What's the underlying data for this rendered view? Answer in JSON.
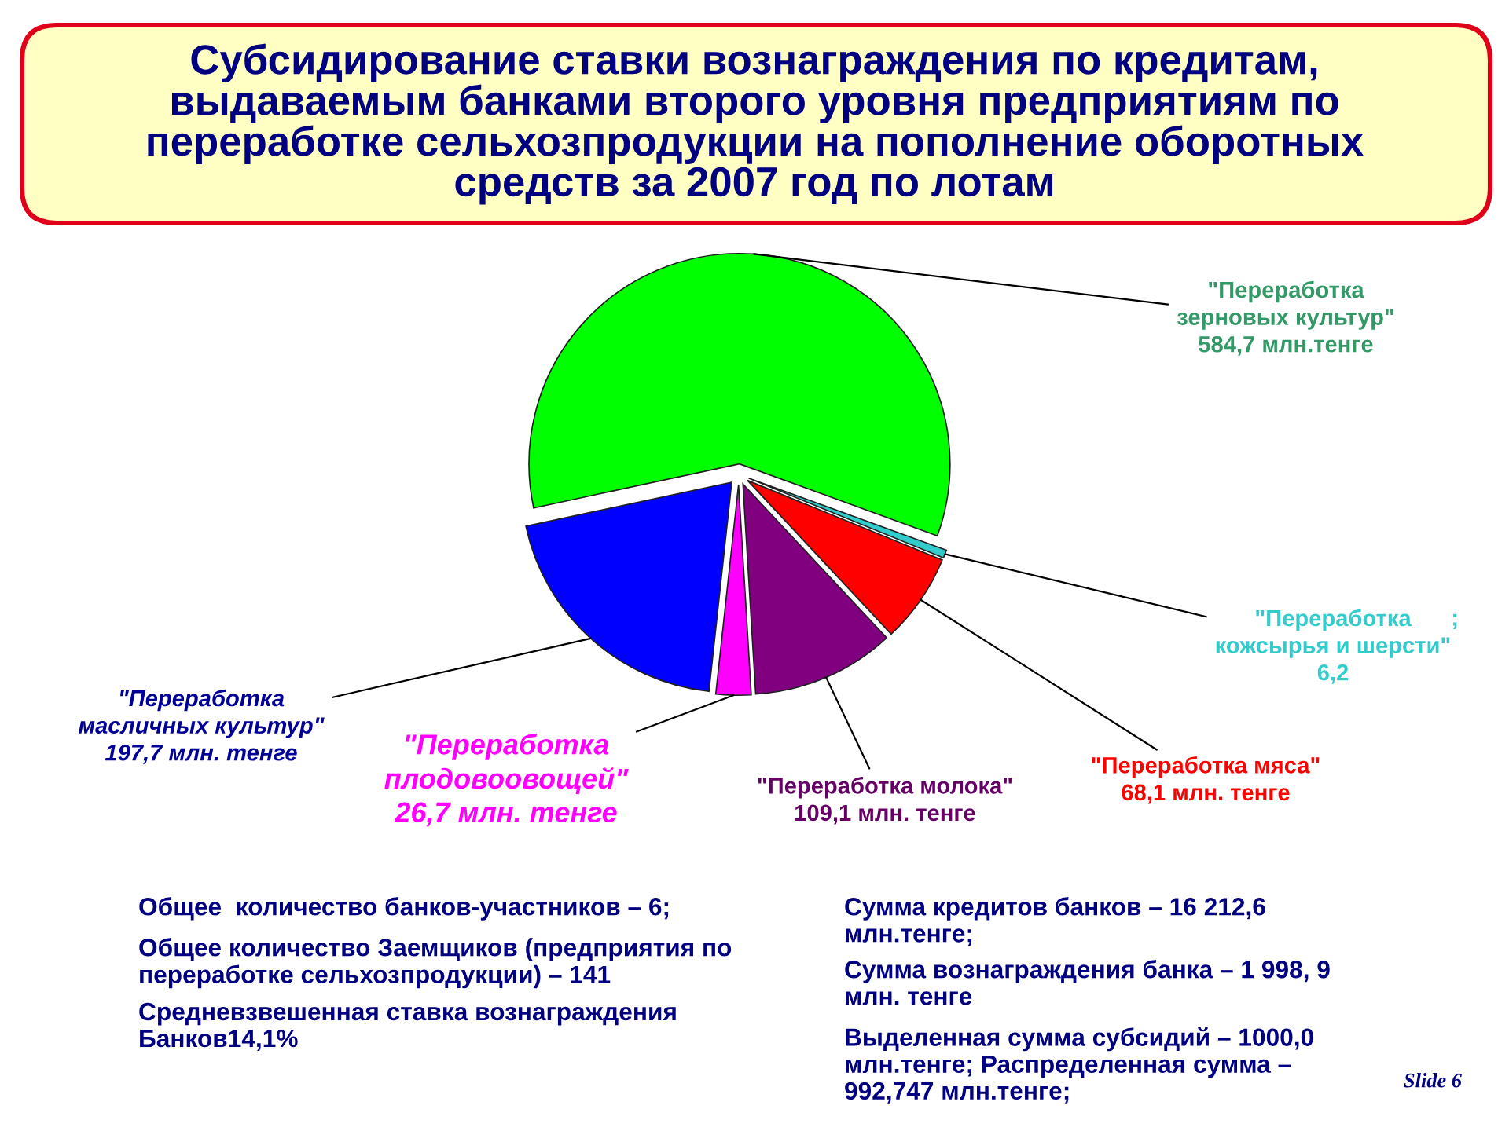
{
  "chart_data": {
    "type": "pie",
    "title": "Субсидирование ставки вознаграждения по кредитам,\nвыдаваемым банками второго уровня предприятиям по\nпереработке сельхозпродукции на пополнение оборотных\nсредств за 2007 год по лотам",
    "categories": [
      "\"Переработка\nзерновых культур\"",
      "\"Переработка\nмасличных культур\"",
      "\"Переработка\nплодовоовощей\"",
      "\"Переработка молока\"",
      "\"Переработка мяса\"",
      "\"Переработка\nкожсырья и шерсти\""
    ],
    "values": [
      584.7,
      197.7,
      26.7,
      109.1,
      68.1,
      6.2
    ],
    "colors": [
      "#00ff00",
      "#0000ff",
      "#ff00ff",
      "#800080",
      "#ff0000",
      "#33cccc"
    ],
    "value_labels": [
      "584,7 млн.тенге",
      "197,7 млн. тенге",
      "26,7 млн. тенге",
      "109,1 млн. тенге",
      "68,1 млн. тенге",
      "6,2"
    ],
    "annotations": [
      "Общее  количество банков-участников – 6;",
      "Общее количество Заемщиков (предприятия по\nпереработке сельхозпродукции) – 141",
      "Средневзвешенная ставка вознаграждения\nБанков14,1%",
      "Сумма кредитов банков – 16 212,6\nмлн.тенге;",
      "Сумма вознаграждения банка – 1 998, 9\nмлн. тенге",
      "Выделенная сумма субсидий – 1000,0\nмлн.тенге; Распределенная сумма –\n992,747 млн.тенге;",
      "Slide 6",
      ";"
    ]
  }
}
